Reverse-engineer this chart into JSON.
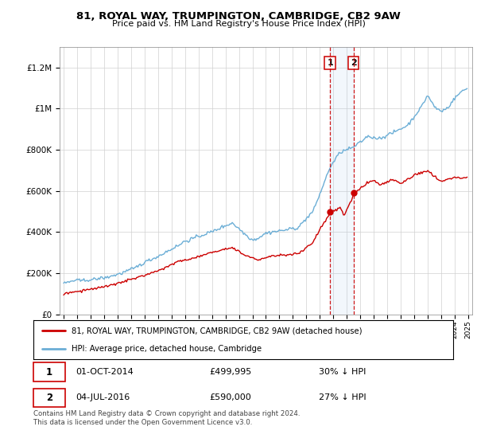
{
  "title": "81, ROYAL WAY, TRUMPINGTON, CAMBRIDGE, CB2 9AW",
  "subtitle": "Price paid vs. HM Land Registry's House Price Index (HPI)",
  "legend_line1": "81, ROYAL WAY, TRUMPINGTON, CAMBRIDGE, CB2 9AW (detached house)",
  "legend_line2": "HPI: Average price, detached house, Cambridge",
  "transaction1_date": "01-OCT-2014",
  "transaction1_price": "£499,995",
  "transaction1_hpi": "30% ↓ HPI",
  "transaction1_year": 2014.75,
  "transaction1_value": 499995,
  "transaction2_date": "04-JUL-2016",
  "transaction2_price": "£590,000",
  "transaction2_hpi": "27% ↓ HPI",
  "transaction2_year": 2016.5,
  "transaction2_value": 590000,
  "footnote": "Contains HM Land Registry data © Crown copyright and database right 2024.\nThis data is licensed under the Open Government Licence v3.0.",
  "hpi_color": "#6baed6",
  "price_color": "#cc0000",
  "marker_box_color": "#cc0000",
  "vline_color": "#cc0000",
  "highlight_color": "#ddeeff",
  "ylim_max": 1300000,
  "xlim_start": 1994.7,
  "xlim_end": 2025.3
}
